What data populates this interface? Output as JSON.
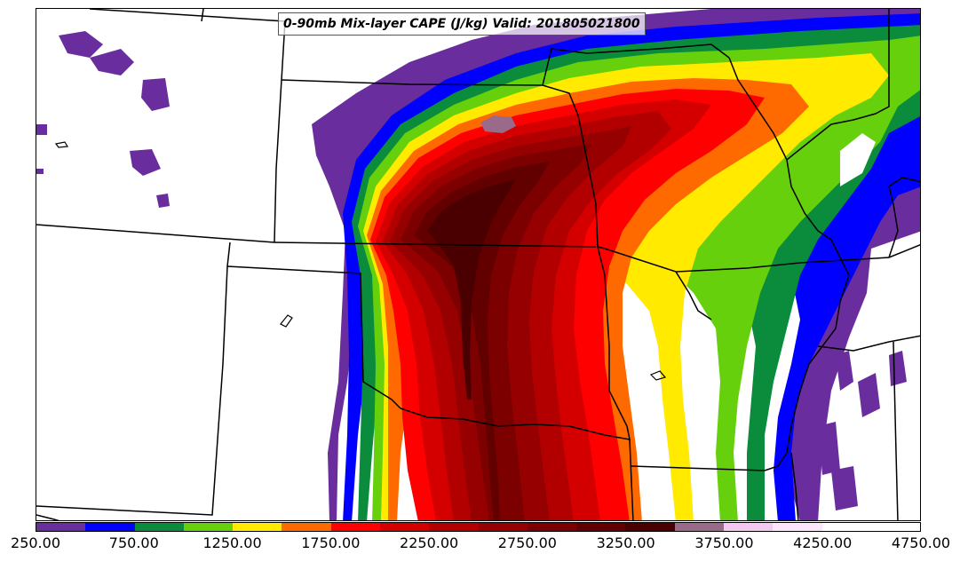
{
  "title": "0-90mb Mix-layer CAPE (J/kg) Valid: 201805021800",
  "colorbar": {
    "levels": [
      250,
      500,
      750,
      1000,
      1250,
      1500,
      1750,
      2000,
      2250,
      2500,
      2750,
      3000,
      3250,
      3500,
      3750,
      4000,
      4250,
      4500,
      4750
    ],
    "tick_labels": [
      "250.00",
      "750.00",
      "1250.00",
      "1750.00",
      "2250.00",
      "2750.00",
      "3250.00",
      "3750.00",
      "4250.00",
      "4750.00"
    ],
    "colors": [
      "#6a2d9d",
      "#0000ff",
      "#0a8c3c",
      "#66d00c",
      "#ffea00",
      "#ff6a00",
      "#ff0000",
      "#d40000",
      "#b20000",
      "#960000",
      "#7c0000",
      "#620000",
      "#4a0000",
      "#9a6a8a",
      "#f4c8f0",
      "#fde6fb",
      "#ffffff",
      "#ffffff"
    ]
  }
}
